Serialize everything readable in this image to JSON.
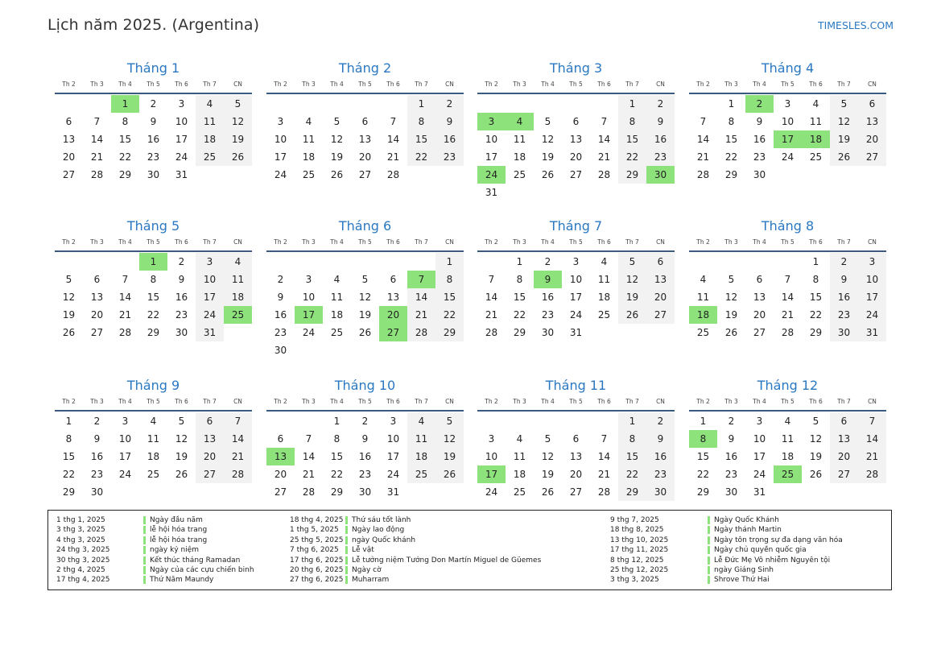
{
  "header": {
    "title": "Lịch năm 2025. (Argentina)",
    "site": "TIMESLES.COM"
  },
  "weekdays": [
    "Th 2",
    "Th 3",
    "Th 4",
    "Th 5",
    "Th 6",
    "Th 7",
    "CN"
  ],
  "months": [
    {
      "name": "Tháng 1",
      "offset": 2,
      "days": 31,
      "holidays": [
        1
      ]
    },
    {
      "name": "Tháng 2",
      "offset": 5,
      "days": 28,
      "holidays": []
    },
    {
      "name": "Tháng 3",
      "offset": 5,
      "days": 31,
      "holidays": [
        3,
        4,
        24,
        30
      ]
    },
    {
      "name": "Tháng 4",
      "offset": 1,
      "days": 30,
      "holidays": [
        2,
        17,
        18
      ]
    },
    {
      "name": "Tháng 5",
      "offset": 3,
      "days": 31,
      "holidays": [
        1,
        25
      ]
    },
    {
      "name": "Tháng 6",
      "offset": 6,
      "days": 30,
      "holidays": [
        7,
        17,
        20,
        27
      ]
    },
    {
      "name": "Tháng 7",
      "offset": 1,
      "days": 31,
      "holidays": [
        9
      ]
    },
    {
      "name": "Tháng 8",
      "offset": 4,
      "days": 31,
      "holidays": [
        18
      ]
    },
    {
      "name": "Tháng 9",
      "offset": 0,
      "days": 30,
      "holidays": []
    },
    {
      "name": "Tháng 10",
      "offset": 2,
      "days": 31,
      "holidays": [
        13
      ]
    },
    {
      "name": "Tháng 11",
      "offset": 5,
      "days": 30,
      "holidays": [
        17
      ]
    },
    {
      "name": "Tháng 12",
      "offset": 0,
      "days": 31,
      "holidays": [
        8,
        25
      ]
    }
  ],
  "holidays": [
    [
      {
        "date": "1 thg 1, 2025",
        "name": "Ngày đầu năm"
      },
      {
        "date": "3 thg 3, 2025",
        "name": "lễ hội hóa trang"
      },
      {
        "date": "4 thg 3, 2025",
        "name": "lễ hội hóa trang"
      },
      {
        "date": "24 thg 3, 2025",
        "name": "ngày kỷ niệm"
      },
      {
        "date": "30 thg 3, 2025",
        "name": "Kết thúc tháng Ramadan"
      },
      {
        "date": "2 thg 4, 2025",
        "name": "Ngày của các cựu chiến binh"
      },
      {
        "date": "17 thg 4, 2025",
        "name": "Thứ Năm Maundy"
      }
    ],
    [
      {
        "date": "18 thg 4, 2025",
        "name": "Thứ sáu tốt lành"
      },
      {
        "date": "1 thg 5, 2025",
        "name": "Ngày lao động"
      },
      {
        "date": "25 thg 5, 2025",
        "name": "ngày Quốc khánh"
      },
      {
        "date": "7 thg 6, 2025",
        "name": "Lễ vật"
      },
      {
        "date": "17 thg 6, 2025",
        "name": "Lễ tưởng niệm Tướng Don Martín Miguel de Güemes"
      },
      {
        "date": "20 thg 6, 2025",
        "name": "Ngày cờ"
      },
      {
        "date": "27 thg 6, 2025",
        "name": "Muharram"
      }
    ],
    [
      {
        "date": "9 thg 7, 2025",
        "name": "Ngày Quốc Khánh"
      },
      {
        "date": "18 thg 8, 2025",
        "name": "Ngày thánh Martin"
      },
      {
        "date": "13 thg 10, 2025",
        "name": "Ngày tôn trọng sự đa dạng văn hóa"
      },
      {
        "date": "17 thg 11, 2025",
        "name": "Ngày chủ quyền quốc gia"
      },
      {
        "date": "8 thg 12, 2025",
        "name": "Lễ Đức Mẹ Vô nhiễm Nguyên tội"
      },
      {
        "date": "25 thg 12, 2025",
        "name": "ngày Giáng Sinh"
      },
      {
        "date": "3 thg 3, 2025",
        "name": "Shrove Thứ Hai"
      }
    ]
  ],
  "colors": {
    "accent": "#2a78c2",
    "holiday": "#8ee27c",
    "weekend": "#f2f2f2"
  }
}
